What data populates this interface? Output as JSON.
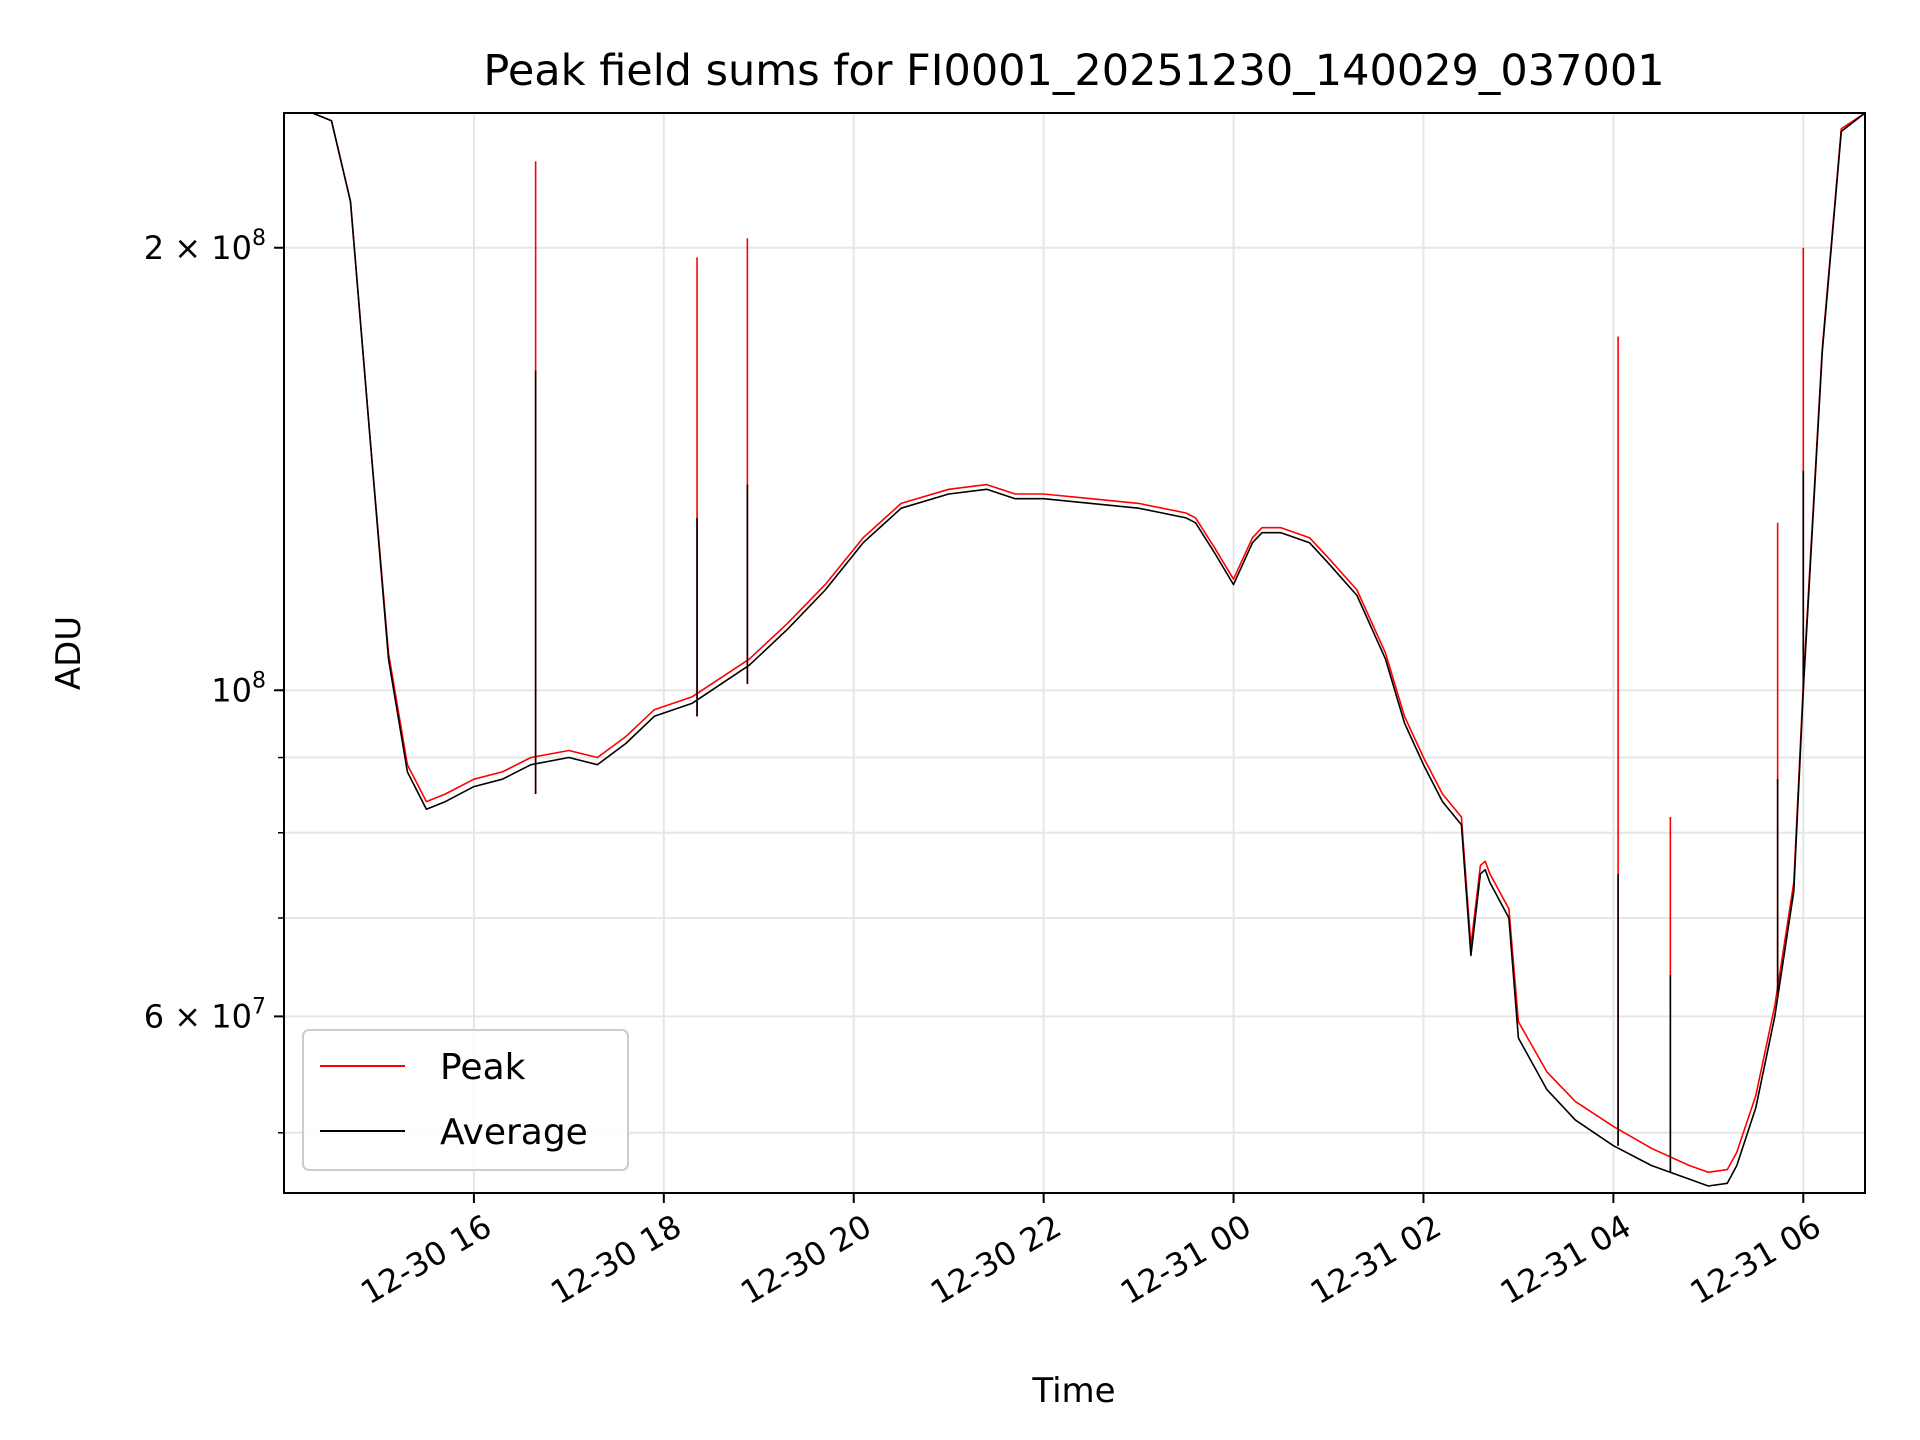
{
  "chart_data": {
    "type": "line",
    "title": "Peak field sums for FI0001_20251230_140029_037001",
    "xlabel": "Time",
    "ylabel": "ADU",
    "yscale": "log",
    "ylim": [
      45500000,
      247000000
    ],
    "xlim_hours": [
      14.0,
      30.65
    ],
    "grid": true,
    "legend_position": "lower-left",
    "x_tick_labels": [
      "12-30 16",
      "12-30 18",
      "12-30 20",
      "12-30 22",
      "12-31 00",
      "12-31 02",
      "12-31 04",
      "12-31 06"
    ],
    "x_tick_hours": [
      16,
      18,
      20,
      22,
      24,
      26,
      28,
      30
    ],
    "y_tick_labels": [
      {
        "mantissa": "2",
        "exp": "8",
        "value": 200000000
      },
      {
        "mantissa": "",
        "exp": "8",
        "value": 100000000
      },
      {
        "mantissa": "6",
        "exp": "7",
        "value": 60000000
      }
    ],
    "y_minor_grid": [
      50000000,
      70000000,
      80000000,
      90000000
    ],
    "series": [
      {
        "name": "Peak",
        "color": "#ff0000"
      },
      {
        "name": "Average",
        "color": "#000000"
      }
    ],
    "x_hours": [
      14.0,
      14.3,
      14.5,
      14.7,
      14.9,
      15.1,
      15.3,
      15.5,
      15.7,
      16.0,
      16.3,
      16.6,
      17.0,
      17.3,
      17.6,
      17.9,
      18.3,
      18.9,
      19.3,
      19.7,
      20.1,
      20.5,
      21.0,
      21.4,
      21.7,
      22.0,
      22.5,
      23.0,
      23.5,
      23.6,
      23.8,
      24.0,
      24.2,
      24.3,
      24.5,
      24.8,
      25.0,
      25.3,
      25.6,
      25.8,
      26.0,
      26.2,
      26.4,
      26.5,
      26.6,
      26.65,
      26.7,
      26.9,
      27.0,
      27.3,
      27.6,
      28.0,
      28.4,
      28.8,
      29.0,
      29.2,
      29.3,
      29.5,
      29.7,
      29.9,
      30.0,
      30.2,
      30.4,
      30.65
    ],
    "average": [
      247000000,
      247000000,
      244000000,
      215000000,
      150000000,
      105000000,
      88000000,
      83000000,
      84000000,
      86000000,
      87000000,
      89000000,
      90000000,
      89000000,
      92000000,
      96000000,
      98000000,
      104000000,
      110000000,
      117000000,
      126000000,
      133000000,
      136000000,
      137000000,
      135000000,
      135000000,
      134000000,
      133000000,
      131000000,
      130000000,
      124000000,
      118000000,
      126000000,
      128000000,
      128000000,
      126000000,
      122000000,
      116000000,
      105000000,
      95000000,
      89000000,
      84000000,
      81000000,
      66000000,
      75000000,
      75500000,
      74000000,
      70000000,
      58000000,
      53500000,
      51000000,
      49000000,
      47500000,
      46500000,
      46000000,
      46200000,
      47500000,
      52000000,
      60000000,
      73000000,
      100000000,
      170000000,
      240000000,
      247000000
    ],
    "peak": [
      247000000,
      247000000,
      244000000,
      215000000,
      150000000,
      106000000,
      89000000,
      84000000,
      85000000,
      87000000,
      88000000,
      90000000,
      91000000,
      90000000,
      93000000,
      97000000,
      99000000,
      105000000,
      111000000,
      118000000,
      127000000,
      134000000,
      137000000,
      138000000,
      136000000,
      136000000,
      135000000,
      134000000,
      132000000,
      131000000,
      125000000,
      119000000,
      127000000,
      129000000,
      129000000,
      127000000,
      123000000,
      117000000,
      106000000,
      96000000,
      90000000,
      85000000,
      82000000,
      67000000,
      76000000,
      76500000,
      75000000,
      71000000,
      59500000,
      55000000,
      52500000,
      50500000,
      48800000,
      47500000,
      47000000,
      47200000,
      48500000,
      53000000,
      61000000,
      74000000,
      101000000,
      171000000,
      241000000,
      247000000
    ],
    "spikes": [
      {
        "hour": 16.65,
        "peak": 229000000,
        "average": 165000000,
        "base": 85000000
      },
      {
        "hour": 18.35,
        "peak": 197000000,
        "average": 131000000,
        "base": 96000000
      },
      {
        "hour": 18.88,
        "peak": 203000000,
        "average": 138000000,
        "base": 101000000
      },
      {
        "hour": 28.05,
        "peak": 174000000,
        "average": 75000000,
        "base": 49000000
      },
      {
        "hour": 28.6,
        "peak": 82000000,
        "average": 64000000,
        "base": 47000000
      },
      {
        "hour": 29.73,
        "peak": 130000000,
        "average": 87000000,
        "base": 62000000
      },
      {
        "hour": 30.0,
        "peak": 200000000,
        "average": 141000000,
        "base": 100000000
      }
    ]
  }
}
